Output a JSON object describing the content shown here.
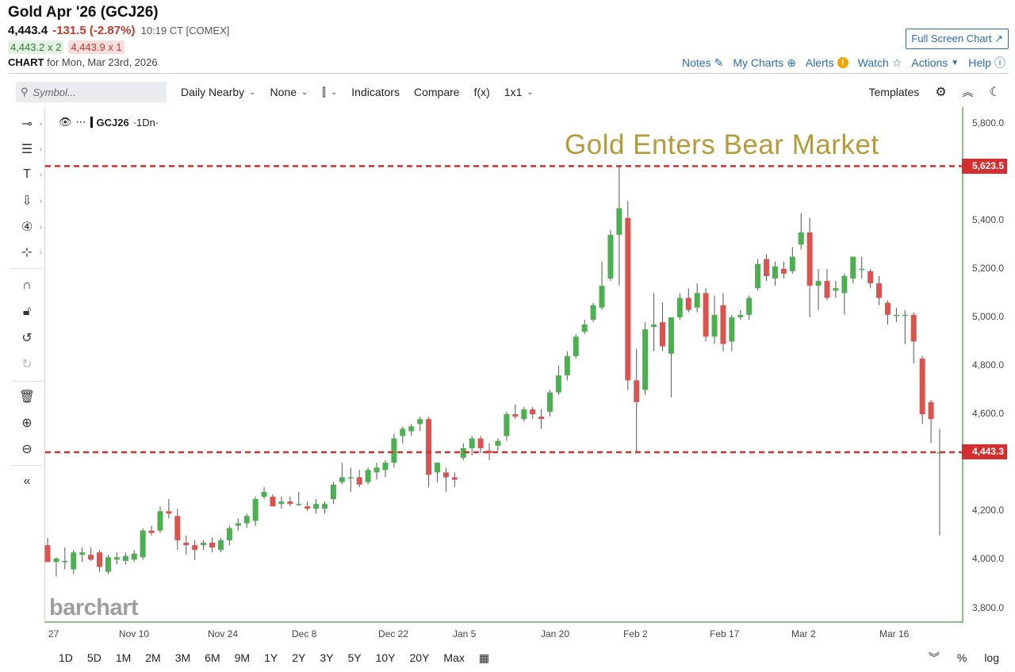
{
  "header": {
    "title": "Gold Apr '26 (GCJ26)",
    "last": "4,443.4",
    "change": "-131.5 (-2.87%)",
    "time": "10:19 CT [COMEX]",
    "bid": "4,443.2 x 2",
    "ask": "4,443.9 x 1",
    "chart_label": "CHART",
    "chart_date": "for Mon, Mar 23rd, 2026",
    "full_screen": "Full Screen Chart ↗"
  },
  "toplinks": {
    "notes": "Notes",
    "my_charts": "My Charts",
    "alerts": "Alerts",
    "watch": "Watch",
    "actions": "Actions",
    "help": "Help"
  },
  "toolbar": {
    "symbol_placeholder": "Symbol...",
    "period": "Daily Nearby",
    "overlay": "None",
    "indicators": "Indicators",
    "compare": "Compare",
    "fx": "f(x)",
    "layout": "1x1",
    "templates": "Templates"
  },
  "legend": {
    "symbol": "GCJ26",
    "interval": "·1Dn·"
  },
  "annotation": "Gold Enters Bear Market",
  "watermark": "barchart",
  "bottombar": {
    "ranges": [
      "1D",
      "5D",
      "1M",
      "2M",
      "3M",
      "6M",
      "9M",
      "1Y",
      "2Y",
      "3Y",
      "5Y",
      "10Y",
      "20Y",
      "Max"
    ],
    "percent": "%",
    "log": "log"
  },
  "colors": {
    "up": "#4caf50",
    "down": "#d9534f",
    "hline": "#d32f2f",
    "annotation": "#b59a3a"
  },
  "chart_data": {
    "type": "candlestick",
    "y_ticks": [
      "5,800.0",
      "5,400.0",
      "5,200.0",
      "5,000.0",
      "4,800.0",
      "4,600.0",
      "4,200.0",
      "4,000.0",
      "3,800.0"
    ],
    "x_ticks": [
      "27",
      "Nov 10",
      "Nov 24",
      "Dec 8",
      "Dec 22",
      "Jan 5",
      "Jan 20",
      "Feb 2",
      "Feb 17",
      "Mar 2",
      "Mar 16"
    ],
    "ylim": [
      3750,
      5880
    ],
    "hlines": [
      {
        "value": 5623.5,
        "label": "5,623.5"
      },
      {
        "value": 4443.3,
        "label": "4,443.3"
      }
    ],
    "candles": [
      {
        "o": 4060,
        "h": 4090,
        "l": 3990,
        "c": 3990
      },
      {
        "o": 3990,
        "h": 4010,
        "l": 3930,
        "c": 4005
      },
      {
        "o": 3990,
        "h": 4050,
        "l": 3960,
        "c": 3995
      },
      {
        "o": 3960,
        "h": 4040,
        "l": 3940,
        "c": 4030
      },
      {
        "o": 4020,
        "h": 4050,
        "l": 3990,
        "c": 4030
      },
      {
        "o": 4020,
        "h": 4050,
        "l": 3995,
        "c": 4000
      },
      {
        "o": 4030,
        "h": 4040,
        "l": 3950,
        "c": 3970
      },
      {
        "o": 3950,
        "h": 4020,
        "l": 3940,
        "c": 4010
      },
      {
        "o": 4000,
        "h": 4030,
        "l": 3980,
        "c": 4010
      },
      {
        "o": 3995,
        "h": 4030,
        "l": 3980,
        "c": 4015
      },
      {
        "o": 4000,
        "h": 4040,
        "l": 3990,
        "c": 4025
      },
      {
        "o": 4010,
        "h": 4130,
        "l": 4000,
        "c": 4120
      },
      {
        "o": 4120,
        "h": 4140,
        "l": 4100,
        "c": 4110
      },
      {
        "o": 4120,
        "h": 4220,
        "l": 4110,
        "c": 4200
      },
      {
        "o": 4200,
        "h": 4250,
        "l": 4170,
        "c": 4190
      },
      {
        "o": 4180,
        "h": 4210,
        "l": 4040,
        "c": 4080
      },
      {
        "o": 4070,
        "h": 4100,
        "l": 4020,
        "c": 4060
      },
      {
        "o": 4060,
        "h": 4080,
        "l": 4000,
        "c": 4040
      },
      {
        "o": 4060,
        "h": 4080,
        "l": 4040,
        "c": 4070
      },
      {
        "o": 4070,
        "h": 4090,
        "l": 4030,
        "c": 4050
      },
      {
        "o": 4040,
        "h": 4090,
        "l": 4030,
        "c": 4080
      },
      {
        "o": 4080,
        "h": 4140,
        "l": 4060,
        "c": 4130
      },
      {
        "o": 4140,
        "h": 4170,
        "l": 4120,
        "c": 4150
      },
      {
        "o": 4150,
        "h": 4190,
        "l": 4130,
        "c": 4180
      },
      {
        "o": 4160,
        "h": 4260,
        "l": 4140,
        "c": 4250
      },
      {
        "o": 4260,
        "h": 4300,
        "l": 4250,
        "c": 4280
      },
      {
        "o": 4260,
        "h": 4270,
        "l": 4220,
        "c": 4220
      },
      {
        "o": 4230,
        "h": 4260,
        "l": 4210,
        "c": 4240
      },
      {
        "o": 4240,
        "h": 4260,
        "l": 4220,
        "c": 4230
      },
      {
        "o": 4230,
        "h": 4280,
        "l": 4220,
        "c": 4230
      },
      {
        "o": 4220,
        "h": 4240,
        "l": 4200,
        "c": 4210
      },
      {
        "o": 4210,
        "h": 4250,
        "l": 4190,
        "c": 4230
      },
      {
        "o": 4210,
        "h": 4240,
        "l": 4190,
        "c": 4230
      },
      {
        "o": 4250,
        "h": 4320,
        "l": 4230,
        "c": 4310
      },
      {
        "o": 4320,
        "h": 4400,
        "l": 4310,
        "c": 4340
      },
      {
        "o": 4340,
        "h": 4380,
        "l": 4280,
        "c": 4340
      },
      {
        "o": 4340,
        "h": 4370,
        "l": 4300,
        "c": 4310
      },
      {
        "o": 4320,
        "h": 4380,
        "l": 4310,
        "c": 4370
      },
      {
        "o": 4360,
        "h": 4400,
        "l": 4330,
        "c": 4380
      },
      {
        "o": 4370,
        "h": 4410,
        "l": 4340,
        "c": 4400
      },
      {
        "o": 4400,
        "h": 4520,
        "l": 4380,
        "c": 4500
      },
      {
        "o": 4510,
        "h": 4550,
        "l": 4480,
        "c": 4540
      },
      {
        "o": 4530,
        "h": 4560,
        "l": 4510,
        "c": 4550
      },
      {
        "o": 4560,
        "h": 4590,
        "l": 4530,
        "c": 4580
      },
      {
        "o": 4580,
        "h": 4590,
        "l": 4300,
        "c": 4350
      },
      {
        "o": 4360,
        "h": 4400,
        "l": 4320,
        "c": 4400
      },
      {
        "o": 4360,
        "h": 4380,
        "l": 4280,
        "c": 4340
      },
      {
        "o": 4340,
        "h": 4360,
        "l": 4300,
        "c": 4330
      },
      {
        "o": 4420,
        "h": 4480,
        "l": 4410,
        "c": 4460
      },
      {
        "o": 4460,
        "h": 4510,
        "l": 4430,
        "c": 4500
      },
      {
        "o": 4500,
        "h": 4510,
        "l": 4440,
        "c": 4460
      },
      {
        "o": 4450,
        "h": 4480,
        "l": 4410,
        "c": 4440
      },
      {
        "o": 4470,
        "h": 4500,
        "l": 4450,
        "c": 4490
      },
      {
        "o": 4510,
        "h": 4610,
        "l": 4490,
        "c": 4600
      },
      {
        "o": 4600,
        "h": 4640,
        "l": 4580,
        "c": 4590
      },
      {
        "o": 4580,
        "h": 4630,
        "l": 4570,
        "c": 4620
      },
      {
        "o": 4620,
        "h": 4630,
        "l": 4580,
        "c": 4600
      },
      {
        "o": 4590,
        "h": 4620,
        "l": 4540,
        "c": 4580
      },
      {
        "o": 4610,
        "h": 4700,
        "l": 4590,
        "c": 4690
      },
      {
        "o": 4690,
        "h": 4800,
        "l": 4680,
        "c": 4760
      },
      {
        "o": 4760,
        "h": 4860,
        "l": 4740,
        "c": 4840
      },
      {
        "o": 4840,
        "h": 4930,
        "l": 4830,
        "c": 4920
      },
      {
        "o": 4940,
        "h": 4990,
        "l": 4930,
        "c": 4970
      },
      {
        "o": 4990,
        "h": 5060,
        "l": 4980,
        "c": 5050
      },
      {
        "o": 5040,
        "h": 5230,
        "l": 5030,
        "c": 5130
      },
      {
        "o": 5160,
        "h": 5360,
        "l": 5150,
        "c": 5340
      },
      {
        "o": 5340,
        "h": 5623.5,
        "l": 5130,
        "c": 5450
      },
      {
        "o": 5410,
        "h": 5480,
        "l": 4700,
        "c": 4740
      },
      {
        "o": 4740,
        "h": 4870,
        "l": 4443.3,
        "c": 4650
      },
      {
        "o": 4700,
        "h": 4980,
        "l": 4680,
        "c": 4950
      },
      {
        "o": 4960,
        "h": 5100,
        "l": 4860,
        "c": 4970
      },
      {
        "o": 4980,
        "h": 5060,
        "l": 4860,
        "c": 4880
      },
      {
        "o": 4850,
        "h": 5000,
        "l": 4670,
        "c": 5000
      },
      {
        "o": 5000,
        "h": 5100,
        "l": 4990,
        "c": 5080
      },
      {
        "o": 5080,
        "h": 5120,
        "l": 5020,
        "c": 5030
      },
      {
        "o": 5040,
        "h": 5140,
        "l": 5020,
        "c": 5100
      },
      {
        "o": 5100,
        "h": 5120,
        "l": 4900,
        "c": 4920
      },
      {
        "o": 4920,
        "h": 5090,
        "l": 4890,
        "c": 5010
      },
      {
        "o": 5050,
        "h": 5100,
        "l": 4860,
        "c": 4890
      },
      {
        "o": 4900,
        "h": 5010,
        "l": 4860,
        "c": 5000
      },
      {
        "o": 5000,
        "h": 5030,
        "l": 4990,
        "c": 5010
      },
      {
        "o": 5010,
        "h": 5090,
        "l": 4990,
        "c": 5080
      },
      {
        "o": 5120,
        "h": 5240,
        "l": 5110,
        "c": 5220
      },
      {
        "o": 5240,
        "h": 5260,
        "l": 5150,
        "c": 5170
      },
      {
        "o": 5160,
        "h": 5230,
        "l": 5130,
        "c": 5210
      },
      {
        "o": 5200,
        "h": 5230,
        "l": 5160,
        "c": 5180
      },
      {
        "o": 5190,
        "h": 5290,
        "l": 5180,
        "c": 5250
      },
      {
        "o": 5300,
        "h": 5430,
        "l": 5280,
        "c": 5350
      },
      {
        "o": 5350,
        "h": 5410,
        "l": 5000,
        "c": 5130
      },
      {
        "o": 5130,
        "h": 5200,
        "l": 5030,
        "c": 5150
      },
      {
        "o": 5150,
        "h": 5200,
        "l": 5070,
        "c": 5080
      },
      {
        "o": 5110,
        "h": 5150,
        "l": 5080,
        "c": 5120
      },
      {
        "o": 5100,
        "h": 5180,
        "l": 5010,
        "c": 5170
      },
      {
        "o": 5160,
        "h": 5250,
        "l": 5140,
        "c": 5250
      },
      {
        "o": 5200,
        "h": 5250,
        "l": 5160,
        "c": 5200
      },
      {
        "o": 5190,
        "h": 5200,
        "l": 5120,
        "c": 5140
      },
      {
        "o": 5140,
        "h": 5170,
        "l": 5050,
        "c": 5080
      },
      {
        "o": 5060,
        "h": 5070,
        "l": 4970,
        "c": 5010
      },
      {
        "o": 5010,
        "h": 5040,
        "l": 4980,
        "c": 5010
      },
      {
        "o": 5010,
        "h": 5030,
        "l": 4890,
        "c": 5010
      },
      {
        "o": 5010,
        "h": 5020,
        "l": 4810,
        "c": 4900
      },
      {
        "o": 4830,
        "h": 4840,
        "l": 4560,
        "c": 4600
      },
      {
        "o": 4650,
        "h": 4660,
        "l": 4480,
        "c": 4580
      },
      {
        "o": 4440,
        "h": 4540,
        "l": 4100,
        "c": 4443.4
      }
    ]
  }
}
